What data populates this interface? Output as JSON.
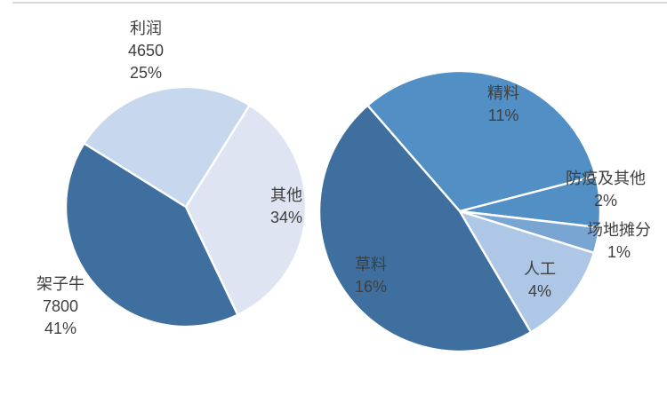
{
  "page": {
    "background": "#ffffff",
    "top_border_color": "#d9d9d9",
    "label_text_color": "#3f3f3f"
  },
  "chart_data": [
    {
      "type": "pie",
      "name": "primary-pie",
      "title": "",
      "legend": "none",
      "total_percent": 100,
      "slice_order": "clockwise-from-start",
      "slices": [
        {
          "name": "other",
          "label": "其他",
          "percent": 34,
          "percent_label": "34%",
          "color": "#dee4f1"
        },
        {
          "name": "feeder-cattle",
          "label": "架子牛",
          "value": 7800,
          "value_label": "7800",
          "percent": 41,
          "percent_label": "41%",
          "color": "#3e6f9f"
        },
        {
          "name": "profit",
          "label": "利润",
          "value": 4650,
          "value_label": "4650",
          "percent": 25,
          "percent_label": "25%",
          "color": "#c6d7ee"
        }
      ]
    },
    {
      "type": "pie",
      "name": "secondary-pie",
      "title": "",
      "legend": "none",
      "total_percent": 34,
      "slice_order": "clockwise-from-start",
      "slices": [
        {
          "name": "concentrate-feed",
          "label": "精料",
          "percent": 11,
          "percent_label": "11%",
          "color": "#518fc5"
        },
        {
          "name": "epidemic-and-other",
          "label": "防疫及其他",
          "percent": 2,
          "percent_label": "2%",
          "color": "#518fc5"
        },
        {
          "name": "site-allocation",
          "label": "场地摊分",
          "percent": 1,
          "percent_label": "1%",
          "color": "#79a5d2"
        },
        {
          "name": "labor",
          "label": "人工",
          "percent": 4,
          "percent_label": "4%",
          "color": "#aec7e6"
        },
        {
          "name": "forage",
          "label": "草料",
          "percent": 16,
          "percent_label": "16%",
          "color": "#3e6f9f"
        }
      ]
    }
  ]
}
